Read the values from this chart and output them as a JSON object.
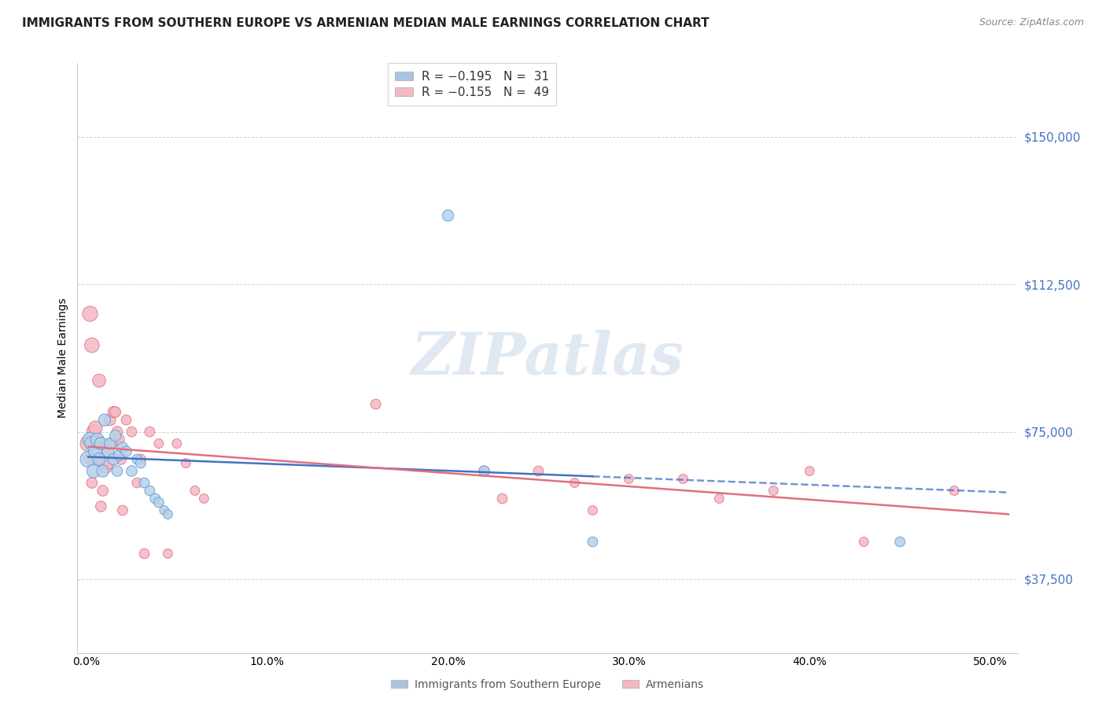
{
  "title": "IMMIGRANTS FROM SOUTHERN EUROPE VS ARMENIAN MEDIAN MALE EARNINGS CORRELATION CHART",
  "source": "Source: ZipAtlas.com",
  "ylabel": "Median Male Earnings",
  "xlabel_ticks": [
    "0.0%",
    "10.0%",
    "20.0%",
    "30.0%",
    "40.0%",
    "50.0%"
  ],
  "xlabel_vals": [
    0.0,
    0.1,
    0.2,
    0.3,
    0.4,
    0.5
  ],
  "ytick_labels": [
    "$37,500",
    "$75,000",
    "$112,500",
    "$150,000"
  ],
  "ytick_vals": [
    37500,
    75000,
    112500,
    150000
  ],
  "ymin": 18750,
  "ymax": 168750,
  "xmin": -0.005,
  "xmax": 0.515,
  "legend1_color": "#a8c4e0",
  "legend2_color": "#f4b8c4",
  "blue_line_color": "#4472c4",
  "pink_line_color": "#e07080",
  "blue_dot_fill": "#b8d0e8",
  "pink_dot_fill": "#f4b8c4",
  "blue_dot_edge": "#5b9bd5",
  "pink_dot_edge": "#e07080",
  "watermark": "ZIPatlas",
  "blue_scatter": [
    [
      0.001,
      68000
    ],
    [
      0.002,
      73000
    ],
    [
      0.003,
      72000
    ],
    [
      0.004,
      65000
    ],
    [
      0.005,
      70000
    ],
    [
      0.006,
      73000
    ],
    [
      0.007,
      68000
    ],
    [
      0.008,
      72000
    ],
    [
      0.009,
      65000
    ],
    [
      0.01,
      78000
    ],
    [
      0.012,
      70000
    ],
    [
      0.013,
      72000
    ],
    [
      0.015,
      68000
    ],
    [
      0.016,
      74000
    ],
    [
      0.017,
      65000
    ],
    [
      0.018,
      69000
    ],
    [
      0.02,
      71000
    ],
    [
      0.022,
      70000
    ],
    [
      0.025,
      65000
    ],
    [
      0.028,
      68000
    ],
    [
      0.03,
      67000
    ],
    [
      0.032,
      62000
    ],
    [
      0.035,
      60000
    ],
    [
      0.038,
      58000
    ],
    [
      0.04,
      57000
    ],
    [
      0.043,
      55000
    ],
    [
      0.045,
      54000
    ],
    [
      0.2,
      130000
    ],
    [
      0.22,
      65000
    ],
    [
      0.28,
      47000
    ],
    [
      0.45,
      47000
    ]
  ],
  "pink_scatter": [
    [
      0.001,
      72000
    ],
    [
      0.002,
      105000
    ],
    [
      0.003,
      97000
    ],
    [
      0.004,
      75000
    ],
    [
      0.005,
      76000
    ],
    [
      0.006,
      68000
    ],
    [
      0.007,
      88000
    ],
    [
      0.008,
      72000
    ],
    [
      0.009,
      67000
    ],
    [
      0.01,
      70000
    ],
    [
      0.011,
      66000
    ],
    [
      0.012,
      67000
    ],
    [
      0.013,
      78000
    ],
    [
      0.014,
      72000
    ],
    [
      0.015,
      80000
    ],
    [
      0.016,
      80000
    ],
    [
      0.017,
      75000
    ],
    [
      0.018,
      73000
    ],
    [
      0.019,
      68000
    ],
    [
      0.02,
      55000
    ],
    [
      0.022,
      78000
    ],
    [
      0.025,
      75000
    ],
    [
      0.028,
      62000
    ],
    [
      0.03,
      68000
    ],
    [
      0.032,
      44000
    ],
    [
      0.035,
      75000
    ],
    [
      0.04,
      72000
    ],
    [
      0.045,
      44000
    ],
    [
      0.05,
      72000
    ],
    [
      0.055,
      67000
    ],
    [
      0.06,
      60000
    ],
    [
      0.065,
      58000
    ],
    [
      0.16,
      82000
    ],
    [
      0.22,
      65000
    ],
    [
      0.23,
      58000
    ],
    [
      0.25,
      65000
    ],
    [
      0.27,
      62000
    ],
    [
      0.28,
      55000
    ],
    [
      0.3,
      63000
    ],
    [
      0.33,
      63000
    ],
    [
      0.35,
      58000
    ],
    [
      0.38,
      60000
    ],
    [
      0.4,
      65000
    ],
    [
      0.43,
      47000
    ],
    [
      0.48,
      60000
    ],
    [
      0.008,
      56000
    ],
    [
      0.009,
      60000
    ],
    [
      0.003,
      62000
    ],
    [
      0.002,
      68000
    ]
  ],
  "blue_scatter_sizes": [
    18,
    15,
    14,
    13,
    13,
    12,
    11,
    11,
    10,
    10,
    10,
    9,
    9,
    9,
    8,
    8,
    8,
    8,
    8,
    7,
    7,
    7,
    7,
    7,
    7,
    6,
    6,
    9,
    8,
    7,
    7
  ],
  "pink_scatter_sizes": [
    18,
    16,
    15,
    14,
    13,
    12,
    12,
    11,
    11,
    10,
    10,
    10,
    9,
    9,
    9,
    8,
    8,
    8,
    8,
    7,
    7,
    7,
    7,
    7,
    7,
    7,
    6,
    6,
    6,
    6,
    6,
    6,
    7,
    7,
    7,
    7,
    6,
    6,
    6,
    6,
    6,
    6,
    6,
    6,
    6,
    8,
    8,
    8,
    10
  ]
}
